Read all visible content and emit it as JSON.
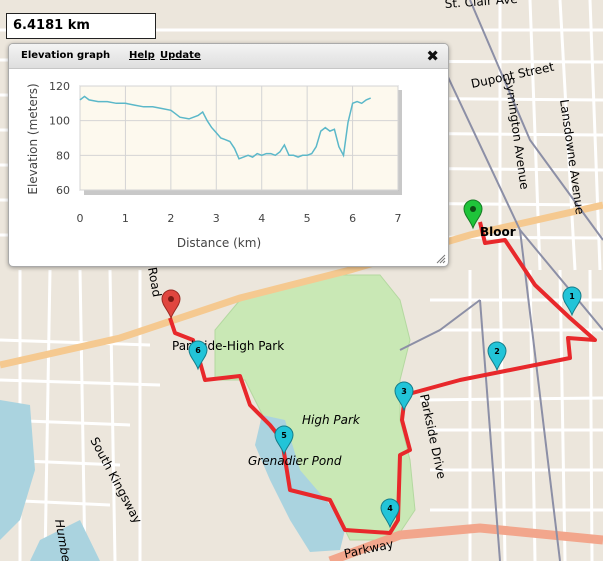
{
  "distance_readout": "6.4181 km",
  "panel": {
    "title": "Elevation graph",
    "help_label": "Help",
    "update_label": "Update",
    "close_glyph": "✖"
  },
  "map": {
    "labels": {
      "st_clair": "St. Clair Ave",
      "dupont": "Dupont Street",
      "symington": "Symington Avenue",
      "lansdowne": "Lansdowne Avenue",
      "bloor": "Bloor",
      "parkside_high_park": "Parkside-High Park",
      "high_park": "High Park",
      "grenadier_pond": "Grenadier Pond",
      "parkside_drive": "Parkside Drive",
      "south_kingsway": "South Kingsway",
      "humber": "Humber",
      "road": "Road",
      "parkway": "Parkway"
    },
    "waypoints": [
      "1",
      "2",
      "3",
      "4",
      "5",
      "6"
    ],
    "colors": {
      "route": "#e8282b",
      "waypoint": "#22c4d8",
      "start": "#1fc43a",
      "end": "#e0463f",
      "park": "#c9e8b5",
      "water": "#aad3df",
      "rail": "#8c8fa6"
    }
  },
  "chart_data": {
    "type": "line",
    "xlabel": "Distance (km)",
    "ylabel": "Elevation (meters)",
    "xlim": [
      0,
      7
    ],
    "ylim": [
      60,
      120
    ],
    "xticks": [
      "0",
      "1",
      "2",
      "3",
      "4",
      "5",
      "6",
      "7"
    ],
    "yticks": [
      "60",
      "80",
      "100",
      "120"
    ],
    "grid": true,
    "line_color": "#5bb8c9",
    "x": [
      0,
      0.1,
      0.2,
      0.4,
      0.6,
      0.8,
      1.0,
      1.2,
      1.4,
      1.6,
      1.8,
      2.0,
      2.1,
      2.2,
      2.4,
      2.6,
      2.7,
      2.8,
      2.9,
      3.0,
      3.1,
      3.2,
      3.3,
      3.4,
      3.5,
      3.6,
      3.7,
      3.8,
      3.9,
      4.0,
      4.1,
      4.2,
      4.3,
      4.4,
      4.5,
      4.6,
      4.7,
      4.8,
      4.9,
      5.0,
      5.1,
      5.2,
      5.3,
      5.4,
      5.5,
      5.6,
      5.7,
      5.8,
      5.9,
      6.0,
      6.1,
      6.2,
      6.3,
      6.4
    ],
    "y": [
      112,
      114,
      112,
      111,
      111,
      110,
      110,
      109,
      108,
      108,
      107,
      106,
      104,
      102,
      101,
      103,
      105,
      100,
      96,
      93,
      90,
      89,
      88,
      84,
      78,
      79,
      80,
      79,
      81,
      80,
      81,
      81,
      80,
      82,
      86,
      80,
      80,
      79,
      80,
      80,
      81,
      85,
      94,
      96,
      94,
      95,
      85,
      80,
      99,
      110,
      111,
      110,
      112,
      113
    ]
  }
}
